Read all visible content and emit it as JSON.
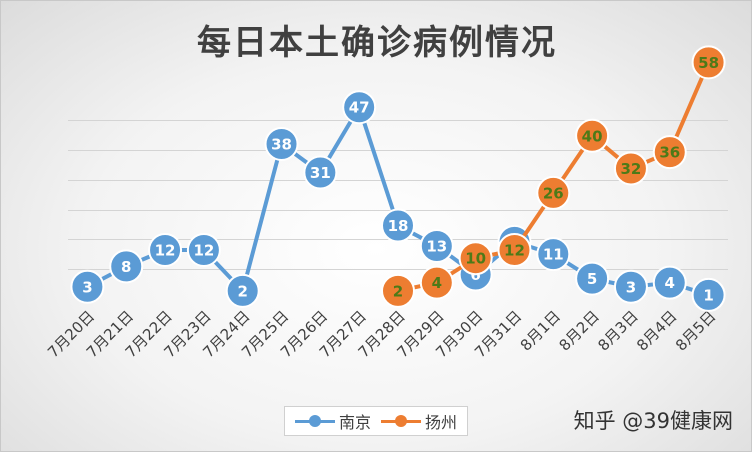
{
  "watermark": "知乎 @39健康网",
  "chart_data": {
    "type": "line",
    "title": "每日本土确诊病例情况",
    "categories": [
      "7月20日",
      "7月21日",
      "7月22日",
      "7月23日",
      "7月24日",
      "7月25日",
      "7月26日",
      "7月27日",
      "7月28日",
      "7月29日",
      "7月30日",
      "7月31日",
      "8月1日",
      "8月2日",
      "8月3日",
      "8月4日",
      "8月5日"
    ],
    "ylim": [
      0,
      80
    ],
    "grid": true,
    "legend": "bottom",
    "series": [
      {
        "name": "南京",
        "color": "#5b9bd5",
        "label_color": "#ffffff",
        "values": [
          3,
          8,
          12,
          12,
          2,
          38,
          31,
          47,
          18,
          13,
          6,
          14,
          11,
          5,
          3,
          4,
          1
        ]
      },
      {
        "name": "扬州",
        "color": "#ed7d31",
        "label_color": "#4d7a18",
        "values": [
          null,
          null,
          null,
          null,
          null,
          null,
          null,
          null,
          2,
          4,
          10,
          12,
          26,
          40,
          32,
          36,
          58
        ]
      }
    ]
  }
}
